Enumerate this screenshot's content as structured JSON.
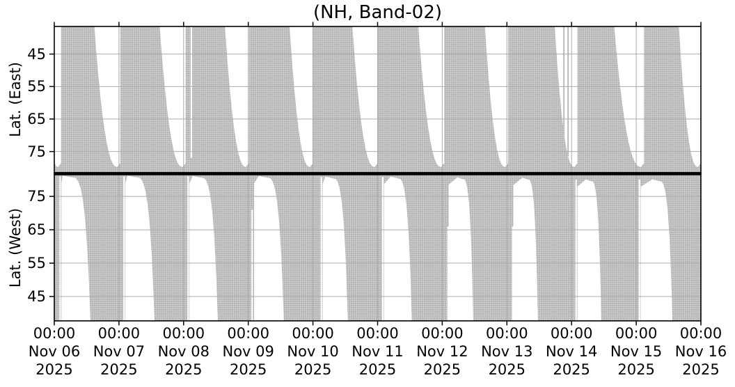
{
  "title": "(NH, Band-02)",
  "east_ylabel": "Lat. (East)",
  "west_ylabel": "Lat. (West)",
  "east_yticks": [
    "45",
    "55",
    "65",
    "75"
  ],
  "west_yticks": [
    "75",
    "65",
    "55",
    "45"
  ],
  "xtick_labels": [
    {
      "time": "00:00",
      "date": "Nov 06",
      "year": "2025"
    },
    {
      "time": "00:00",
      "date": "Nov 07",
      "year": "2025"
    },
    {
      "time": "00:00",
      "date": "Nov 08",
      "year": "2025"
    },
    {
      "time": "00:00",
      "date": "Nov 09",
      "year": "2025"
    },
    {
      "time": "00:00",
      "date": "Nov 10",
      "year": "2025"
    },
    {
      "time": "00:00",
      "date": "Nov 11",
      "year": "2025"
    },
    {
      "time": "00:00",
      "date": "Nov 12",
      "year": "2025"
    },
    {
      "time": "00:00",
      "date": "Nov 13",
      "year": "2025"
    },
    {
      "time": "00:00",
      "date": "Nov 14",
      "year": "2025"
    },
    {
      "time": "00:00",
      "date": "Nov 15",
      "year": "2025"
    },
    {
      "time": "00:00",
      "date": "Nov 16",
      "year": "2025"
    }
  ],
  "chart_data": {
    "type": "area",
    "title": "(NH, Band-02)",
    "x_start": "Nov 06 2025 00:00",
    "x_end": "Nov 16 2025 00:00",
    "x_range_days": [
      0,
      10
    ],
    "x_tick_interval_days": 1,
    "grid": true,
    "panels": [
      {
        "name": "Lat. (East)",
        "lat_range": [
          36.5,
          81.5
        ],
        "yticks": [
          45,
          55,
          65,
          75
        ],
        "y_inverted": true,
        "filled_region": "dotted gray coverage fills panel except one white gap per day",
        "white_gaps": [
          {
            "right_edge_day": 0.105,
            "top_width_days": 0.3
          },
          {
            "right_edge_day": 1.02,
            "top_width_days": 0.4
          },
          {
            "right_edge_day": 2.03,
            "top_width_days": 0.4
          },
          {
            "right_edge_day": 3.01,
            "top_width_days": 0.37
          },
          {
            "right_edge_day": 4.0,
            "top_width_days": 0.36
          },
          {
            "right_edge_day": 5.0,
            "top_width_days": 0.39
          },
          {
            "right_edge_day": 6.03,
            "top_width_days": 0.4
          },
          {
            "right_edge_day": 7.02,
            "top_width_days": 0.36
          },
          {
            "right_edge_day": 8.09,
            "top_width_days": 0.35
          },
          {
            "right_edge_day": 9.12,
            "top_width_days": 0.46
          },
          {
            "right_edge_day": 10.0,
            "top_width_days": 0.34
          }
        ],
        "gap_close_lat": 79.8,
        "thin_white_slits": [
          {
            "day": 2.12,
            "lat_from": 36.5,
            "lat_to": 77.0
          }
        ],
        "thin_gray_lines": [
          {
            "day": 7.88,
            "lat_from": 36.5,
            "lat_to": 76.5
          },
          {
            "day": 7.945,
            "lat_from": 36.5,
            "lat_to": 76.5
          }
        ]
      },
      {
        "name": "Lat. (West)",
        "lat_range": [
          37.7,
          81.5
        ],
        "yticks": [
          75,
          65,
          55,
          45
        ],
        "y_inverted": false,
        "filled_region": "dotted gray coverage fills panel except one white blade-shaped gap per day",
        "white_blades": [
          {
            "vertex_day": 0.13,
            "vertex_lat": 81.2,
            "bottom_left_day": 0.11,
            "bottom_right_day": 0.56
          },
          {
            "vertex_day": 1.13,
            "vertex_lat": 81.2,
            "bottom_left_day": 1.1,
            "bottom_right_day": 1.55
          },
          {
            "vertex_day": 2.14,
            "vertex_lat": 81.1,
            "bottom_left_day": 2.09,
            "bottom_right_day": 2.53
          },
          {
            "vertex_day": 3.16,
            "vertex_lat": 81.1,
            "bottom_left_day": 3.09,
            "bottom_right_day": 3.55
          },
          {
            "vertex_day": 4.19,
            "vertex_lat": 80.9,
            "bottom_left_day": 4.15,
            "bottom_right_day": 4.54
          },
          {
            "vertex_day": 5.2,
            "vertex_lat": 80.9,
            "bottom_left_day": 5.1,
            "bottom_right_day": 5.53
          },
          {
            "vertex_day": 6.23,
            "vertex_lat": 80.7,
            "bottom_left_day": 6.1,
            "bottom_right_day": 6.48
          },
          {
            "vertex_day": 7.24,
            "vertex_lat": 80.6,
            "bottom_left_day": 7.1,
            "bottom_right_day": 7.48
          },
          {
            "vertex_day": 8.22,
            "vertex_lat": 80.1,
            "bottom_left_day": 8.09,
            "bottom_right_day": 8.46
          },
          {
            "vertex_day": 9.25,
            "vertex_lat": 80.1,
            "bottom_left_day": 9.07,
            "bottom_right_day": 9.56
          }
        ],
        "thin_white_slits": [
          {
            "day": 0.09,
            "lat_from": 81.0,
            "lat_to": 37.7
          },
          {
            "day": 1.08,
            "lat_from": 81.0,
            "lat_to": 37.7
          },
          {
            "day": 2.07,
            "lat_from": 81.0,
            "lat_to": 37.7
          },
          {
            "day": 3.06,
            "lat_from": 71.0,
            "lat_to": 37.7
          },
          {
            "day": 4.13,
            "lat_from": 80.8,
            "lat_to": 37.7
          },
          {
            "day": 5.08,
            "lat_from": 80.8,
            "lat_to": 37.7
          },
          {
            "day": 6.09,
            "lat_from": 66.0,
            "lat_to": 37.7
          },
          {
            "day": 7.09,
            "lat_from": 66.0,
            "lat_to": 37.7
          },
          {
            "day": 8.07,
            "lat_from": 80.0,
            "lat_to": 37.7
          },
          {
            "day": 9.05,
            "lat_from": 80.0,
            "lat_to": 37.7
          }
        ]
      }
    ],
    "colors": {
      "coverage_fill": "#b3b3b3",
      "coverage_dot_gap": "#c9c9c9",
      "background": "#ffffff",
      "grid": "#ababab",
      "axis": "#000000",
      "text": "#000000"
    }
  }
}
